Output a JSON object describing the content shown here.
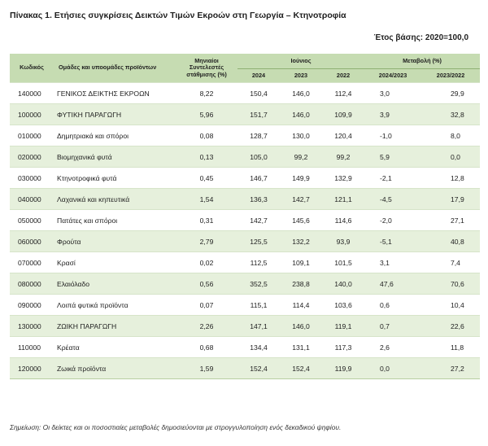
{
  "title": "Πίνακας 1. Ετήσιες συγκρίσεις Δεικτών Τιμών Εκροών στη Γεωργία – Κτηνοτροφία",
  "base_year": "Έτος βάσης: 2020=100,0",
  "headers": {
    "code": "Κωδικός",
    "groups": "Ομάδες και υποομάδες προϊόντων",
    "weights": "Μηνιαίοι Συντελεστές στάθμισης (%)",
    "indices": "Ιούνιος",
    "change": "Μεταβολή (%)",
    "years": [
      "2024",
      "2023",
      "2022"
    ],
    "periods": [
      "2024/2023",
      "2023/2022"
    ]
  },
  "rows": [
    {
      "code": "140000",
      "name": "ΓΕΝΙΚΟΣ ΔΕΙΚΤΗΣ ΕΚΡΟΩΝ",
      "weight": "8,22",
      "y2024": "150,4",
      "y2023": "146,0",
      "y2022": "112,4",
      "c1": "3,0",
      "c2": "29,9",
      "shaded": false
    },
    {
      "code": "100000",
      "name": "ΦΥΤΙΚΗ ΠΑΡΑΓΩΓΗ",
      "weight": "5,96",
      "y2024": "151,7",
      "y2023": "146,0",
      "y2022": "109,9",
      "c1": "3,9",
      "c2": "32,8",
      "shaded": true
    },
    {
      "code": "010000",
      "name": "Δημητριακά και σπόροι",
      "weight": "0,08",
      "y2024": "128,7",
      "y2023": "130,0",
      "y2022": "120,4",
      "c1": "-1,0",
      "c2": "8,0",
      "shaded": false
    },
    {
      "code": "020000",
      "name": "Βιομηχανικά φυτά",
      "weight": "0,13",
      "y2024": "105,0",
      "y2023": "99,2",
      "y2022": "99,2",
      "c1": "5,9",
      "c2": "0,0",
      "shaded": true
    },
    {
      "code": "030000",
      "name": "Κτηνοτροφικά φυτά",
      "weight": "0,45",
      "y2024": "146,7",
      "y2023": "149,9",
      "y2022": "132,9",
      "c1": "-2,1",
      "c2": "12,8",
      "shaded": false
    },
    {
      "code": "040000",
      "name": "Λαχανικά και κηπευτικά",
      "weight": "1,54",
      "y2024": "136,3",
      "y2023": "142,7",
      "y2022": "121,1",
      "c1": "-4,5",
      "c2": "17,9",
      "shaded": true
    },
    {
      "code": "050000",
      "name": "Πατάτες και σπόροι",
      "weight": "0,31",
      "y2024": "142,7",
      "y2023": "145,6",
      "y2022": "114,6",
      "c1": "-2,0",
      "c2": "27,1",
      "shaded": false
    },
    {
      "code": "060000",
      "name": "Φρούτα",
      "weight": "2,79",
      "y2024": "125,5",
      "y2023": "132,2",
      "y2022": "93,9",
      "c1": "-5,1",
      "c2": "40,8",
      "shaded": true
    },
    {
      "code": "070000",
      "name": "Κρασί",
      "weight": "0,02",
      "y2024": "112,5",
      "y2023": "109,1",
      "y2022": "101,5",
      "c1": "3,1",
      "c2": "7,4",
      "shaded": false
    },
    {
      "code": "080000",
      "name": "Ελαιόλαδο",
      "weight": "0,56",
      "y2024": "352,5",
      "y2023": "238,8",
      "y2022": "140,0",
      "c1": "47,6",
      "c2": "70,6",
      "shaded": true
    },
    {
      "code": "090000",
      "name": "Λοιπά φυτικά προϊόντα",
      "weight": "0,07",
      "y2024": "115,1",
      "y2023": "114,4",
      "y2022": "103,6",
      "c1": "0,6",
      "c2": "10,4",
      "shaded": false
    },
    {
      "code": "130000",
      "name": "ΖΩΙΚΗ ΠΑΡΑΓΩΓΗ",
      "weight": "2,26",
      "y2024": "147,1",
      "y2023": "146,0",
      "y2022": "119,1",
      "c1": "0,7",
      "c2": "22,6",
      "shaded": true
    },
    {
      "code": "110000",
      "name": "Κρέατα",
      "weight": "0,68",
      "y2024": "134,4",
      "y2023": "131,1",
      "y2022": "117,3",
      "c1": "2,6",
      "c2": "11,8",
      "shaded": false
    },
    {
      "code": "120000",
      "name": "Ζωικά προϊόντα",
      "weight": "1,59",
      "y2024": "152,4",
      "y2023": "152,4",
      "y2022": "119,9",
      "c1": "0,0",
      "c2": "27,2",
      "shaded": true
    }
  ],
  "note": "Σημείωση: Οι δείκτες και οι ποσοστιαίες μεταβολές δημοσιεύονται με στρογγυλοποίηση ενός δεκαδικού ψηφίου."
}
